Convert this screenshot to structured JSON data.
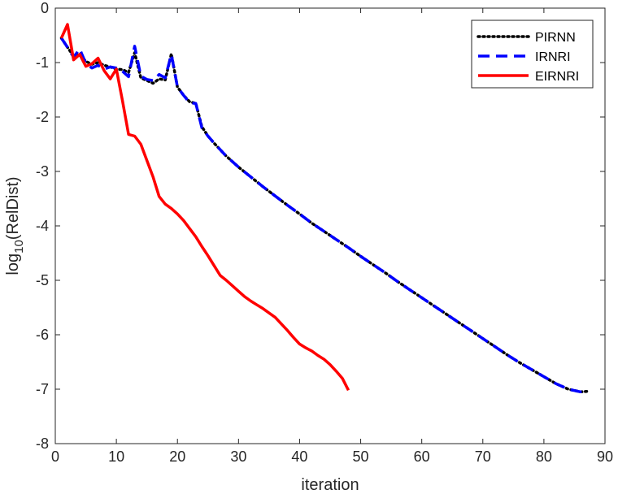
{
  "chart_data": {
    "type": "line",
    "title": "",
    "xlabel": "iteration",
    "ylabel_main": "log",
    "ylabel_sub": "10",
    "ylabel_rest": "(RelDist)",
    "xlim": [
      0,
      90
    ],
    "ylim": [
      -8,
      0
    ],
    "xticks": [
      0,
      10,
      20,
      30,
      40,
      50,
      60,
      70,
      80,
      90
    ],
    "yticks": [
      0,
      -1,
      -2,
      -3,
      -4,
      -5,
      -6,
      -7,
      -8
    ],
    "grid": false,
    "legend_position": "top-right",
    "series": [
      {
        "name": "PIRNN",
        "color": "#000000",
        "dash": "dotted",
        "x": [
          1,
          2,
          3,
          4,
          5,
          6,
          7,
          8,
          9,
          10,
          11,
          12,
          13,
          14,
          15,
          16,
          17,
          18,
          19,
          20,
          21,
          22,
          23,
          24,
          25,
          26,
          27,
          28,
          29,
          30,
          32,
          34,
          36,
          38,
          40,
          42,
          44,
          46,
          48,
          50,
          52,
          54,
          56,
          58,
          60,
          62,
          64,
          66,
          68,
          70,
          72,
          74,
          76,
          78,
          80,
          82,
          84,
          86,
          87
        ],
        "y": [
          -0.55,
          -0.72,
          -0.88,
          -0.85,
          -0.98,
          -1.03,
          -1.0,
          -1.05,
          -1.08,
          -1.12,
          -1.13,
          -1.18,
          -0.82,
          -1.28,
          -1.33,
          -1.38,
          -1.3,
          -1.32,
          -0.84,
          -1.45,
          -1.6,
          -1.72,
          -1.75,
          -2.18,
          -2.35,
          -2.48,
          -2.6,
          -2.72,
          -2.82,
          -2.92,
          -3.1,
          -3.28,
          -3.45,
          -3.62,
          -3.78,
          -3.95,
          -4.1,
          -4.25,
          -4.4,
          -4.56,
          -4.71,
          -4.86,
          -5.02,
          -5.17,
          -5.32,
          -5.47,
          -5.62,
          -5.77,
          -5.92,
          -6.07,
          -6.22,
          -6.37,
          -6.51,
          -6.64,
          -6.77,
          -6.9,
          -7.0,
          -7.05,
          -7.04
        ]
      },
      {
        "name": "IRNRI",
        "color": "#0000ff",
        "dash": "dashed",
        "x": [
          1,
          2,
          3,
          4,
          5,
          6,
          7,
          8,
          9,
          10,
          11,
          12,
          13,
          14,
          15,
          16,
          17,
          18,
          19,
          20,
          21,
          22,
          23,
          24,
          25,
          26,
          27,
          28,
          29,
          30,
          32,
          34,
          36,
          38,
          40,
          42,
          44,
          46,
          48,
          50,
          52,
          54,
          56,
          58,
          60,
          62,
          64,
          66,
          68,
          70,
          72,
          74,
          76,
          78,
          80,
          82,
          84,
          86,
          87
        ],
        "y": [
          -0.55,
          -0.72,
          -0.9,
          -0.75,
          -1.02,
          -1.1,
          -1.05,
          -1.12,
          -1.08,
          -1.1,
          -1.16,
          -1.26,
          -0.7,
          -1.25,
          -1.31,
          -1.33,
          -1.22,
          -1.28,
          -0.85,
          -1.45,
          -1.6,
          -1.74,
          -1.75,
          -2.2,
          -2.35,
          -2.48,
          -2.6,
          -2.72,
          -2.82,
          -2.92,
          -3.1,
          -3.28,
          -3.45,
          -3.62,
          -3.78,
          -3.95,
          -4.1,
          -4.25,
          -4.4,
          -4.56,
          -4.71,
          -4.86,
          -5.02,
          -5.17,
          -5.32,
          -5.47,
          -5.62,
          -5.77,
          -5.92,
          -6.07,
          -6.22,
          -6.37,
          -6.51,
          -6.64,
          -6.77,
          -6.9,
          -7.0,
          -7.05,
          -7.04
        ]
      },
      {
        "name": "EIRNRI",
        "color": "#ff0000",
        "dash": "solid",
        "x": [
          1,
          2,
          3,
          4,
          5,
          6,
          7,
          8,
          9,
          10,
          11,
          12,
          13,
          14,
          15,
          16,
          17,
          18,
          19,
          20,
          21,
          22,
          23,
          24,
          25,
          26,
          27,
          28,
          29,
          30,
          31,
          32,
          33,
          34,
          35,
          36,
          37,
          38,
          39,
          40,
          41,
          42,
          43,
          44,
          45,
          46,
          47,
          48
        ],
        "y": [
          -0.55,
          -0.3,
          -0.95,
          -0.85,
          -1.07,
          -1.02,
          -0.92,
          -1.15,
          -1.3,
          -1.12,
          -1.7,
          -2.32,
          -2.35,
          -2.5,
          -2.8,
          -3.1,
          -3.46,
          -3.6,
          -3.68,
          -3.78,
          -3.9,
          -4.05,
          -4.2,
          -4.38,
          -4.55,
          -4.73,
          -4.91,
          -5.0,
          -5.1,
          -5.2,
          -5.3,
          -5.38,
          -5.45,
          -5.52,
          -5.6,
          -5.68,
          -5.8,
          -5.92,
          -6.05,
          -6.17,
          -6.24,
          -6.3,
          -6.38,
          -6.45,
          -6.55,
          -6.67,
          -6.8,
          -7.02
        ]
      }
    ]
  }
}
